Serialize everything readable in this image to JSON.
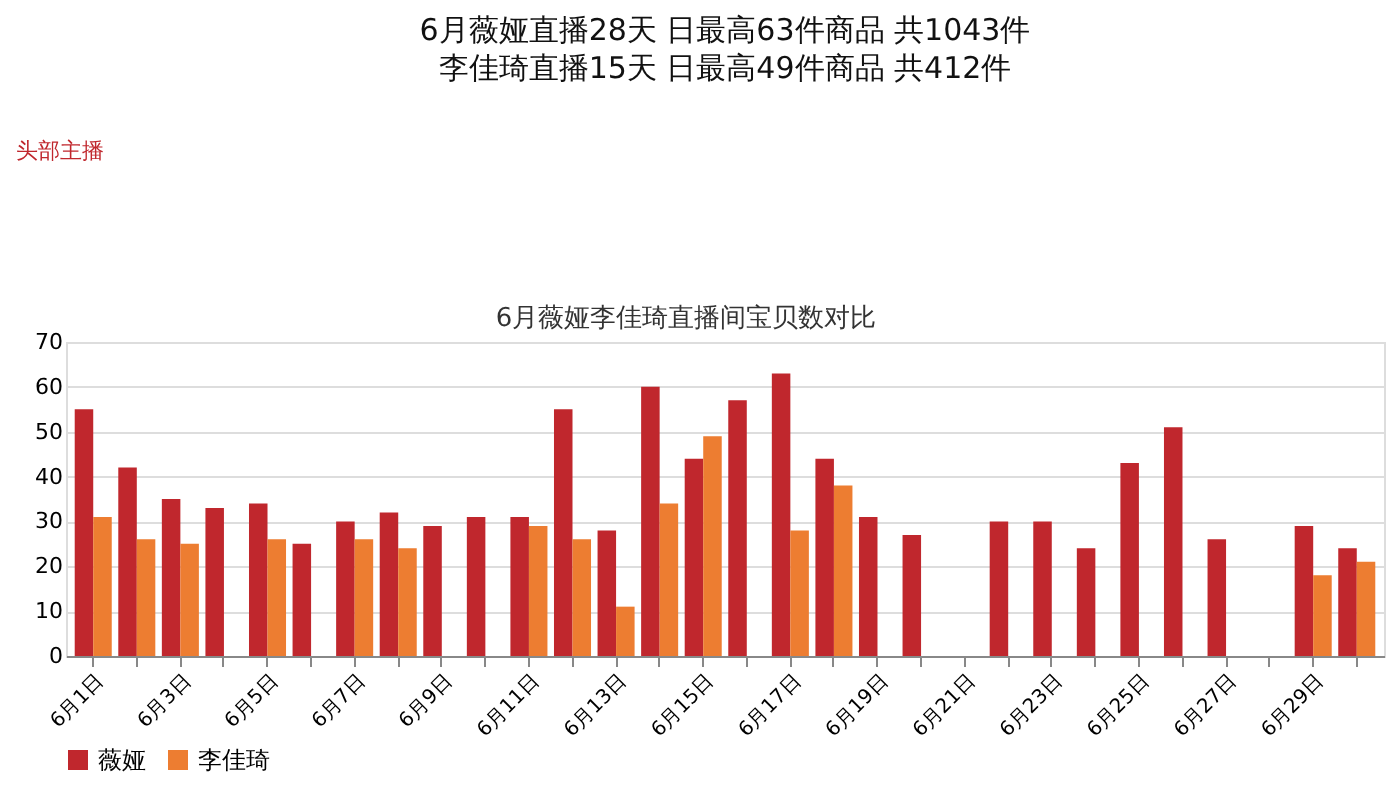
{
  "chart_data": {
    "type": "bar",
    "title": "6月薇娅直播28天 日最高63件商品 共1043件",
    "subtitle": "李佳琦直播15天 日最高49件商品 共412件",
    "annotations": [
      "头部主播",
      "6月薇娅李佳琦直播间宝贝数对比"
    ],
    "categories": [
      "6月1日",
      null,
      "6月3日",
      null,
      "6月5日",
      null,
      "6月7日",
      null,
      "6月9日",
      null,
      "6月11日",
      null,
      "6月13日",
      null,
      "6月15日",
      null,
      "6月17日",
      null,
      "6月19日",
      null,
      "6月21日",
      null,
      "6月23日",
      null,
      "6月25日",
      null,
      "6月27日",
      null,
      "6月29日",
      null
    ],
    "series": [
      {
        "name": "薇娅",
        "color": "#c0272d",
        "values": [
          55,
          42,
          35,
          33,
          34,
          25,
          30,
          32,
          29,
          31,
          31,
          55,
          28,
          60,
          44,
          57,
          63,
          44,
          31,
          27,
          null,
          30,
          30,
          24,
          43,
          51,
          26,
          null,
          29,
          24
        ]
      },
      {
        "name": "李佳琦",
        "color": "#ed7d31",
        "values": [
          31,
          26,
          25,
          null,
          26,
          null,
          26,
          24,
          null,
          null,
          29,
          26,
          11,
          34,
          49,
          null,
          28,
          38,
          null,
          null,
          null,
          null,
          null,
          null,
          null,
          null,
          null,
          null,
          18,
          21
        ]
      }
    ],
    "ylim": [
      0,
      70
    ],
    "yticks": [
      0,
      10,
      20,
      30,
      40,
      50,
      60,
      70
    ],
    "grid": "y",
    "legend": "bottom"
  }
}
